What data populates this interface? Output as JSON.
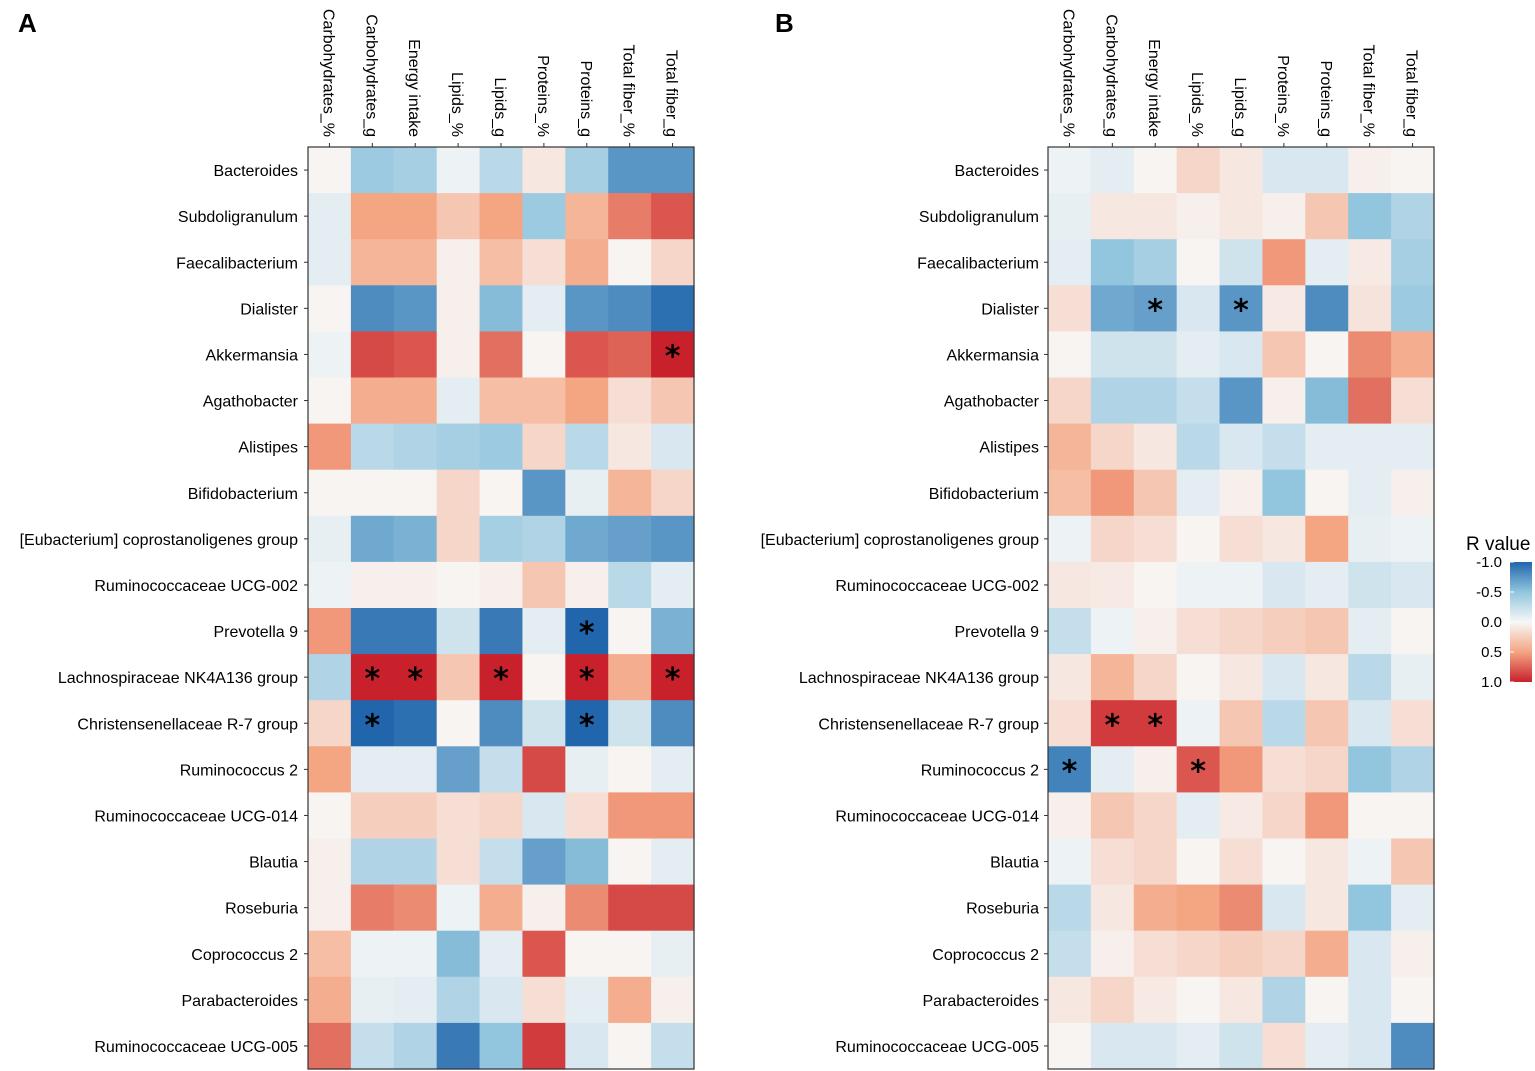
{
  "chart_data": [
    {
      "panel": "A",
      "type": "heatmap",
      "rows": [
        "Bacteroides",
        "Subdoligranulum",
        "Faecalibacterium",
        "Dialister",
        "Akkermansia",
        "Agathobacter",
        "Alistipes",
        "Bifidobacterium",
        "[Eubacterium] coprostanoligenes group",
        "Ruminococcaceae UCG-002",
        "Prevotella 9",
        "Lachnospiraceae NK4A136 group",
        "Christensenellaceae R-7 group",
        "Ruminococcus 2",
        "Ruminococcaceae UCG-014",
        "Blautia",
        "Roseburia",
        "Coprococcus 2",
        "Parabacteroides",
        "Ruminococcaceae UCG-005"
      ],
      "columns": [
        "Carbohydrates_%",
        "Carbohydrates_g",
        "Energy intake",
        "Lipids_%",
        "Lipids_g",
        "Proteins_%",
        "Proteins_g",
        "Total fiber_%",
        "Total fiber_g"
      ],
      "values": [
        [
          0.02,
          -0.45,
          -0.4,
          -0.05,
          -0.3,
          0.1,
          -0.4,
          -0.75,
          -0.75
        ],
        [
          -0.1,
          0.5,
          0.5,
          0.3,
          0.5,
          -0.45,
          0.4,
          0.65,
          0.8
        ],
        [
          -0.1,
          0.4,
          0.4,
          0.05,
          0.35,
          0.15,
          0.45,
          0.02,
          0.2
        ],
        [
          0.02,
          -0.8,
          -0.75,
          0.05,
          -0.55,
          -0.1,
          -0.75,
          -0.8,
          -0.95
        ],
        [
          -0.05,
          0.85,
          0.8,
          0.05,
          0.7,
          0.02,
          0.8,
          0.75,
          1.0
        ],
        [
          0.02,
          0.45,
          0.45,
          -0.1,
          0.35,
          0.35,
          0.5,
          0.15,
          0.3
        ],
        [
          0.55,
          -0.3,
          -0.35,
          -0.4,
          -0.45,
          0.2,
          -0.3,
          0.1,
          -0.15
        ],
        [
          0.02,
          0.02,
          0.02,
          0.2,
          0.02,
          -0.75,
          -0.08,
          0.4,
          0.2
        ],
        [
          -0.08,
          -0.65,
          -0.6,
          0.2,
          -0.4,
          -0.35,
          -0.65,
          -0.7,
          -0.75
        ],
        [
          -0.05,
          0.05,
          0.05,
          0.02,
          0.05,
          0.3,
          0.05,
          -0.3,
          -0.1
        ],
        [
          0.55,
          -0.9,
          -0.9,
          -0.2,
          -0.9,
          -0.1,
          -1.0,
          0.02,
          -0.6
        ],
        [
          -0.35,
          1.0,
          1.0,
          0.3,
          1.0,
          0.02,
          1.0,
          0.45,
          1.0
        ],
        [
          0.2,
          -1.0,
          -0.95,
          0.02,
          -0.8,
          -0.2,
          -1.0,
          -0.2,
          -0.8
        ],
        [
          0.5,
          -0.1,
          -0.1,
          -0.7,
          -0.25,
          0.85,
          -0.08,
          0.02,
          -0.1
        ],
        [
          0.02,
          0.25,
          0.25,
          0.15,
          0.2,
          -0.15,
          0.15,
          0.55,
          0.55
        ],
        [
          0.05,
          -0.35,
          -0.35,
          0.15,
          -0.25,
          -0.7,
          -0.55,
          0.02,
          -0.1
        ],
        [
          0.05,
          0.65,
          0.6,
          -0.05,
          0.45,
          0.05,
          0.6,
          0.85,
          0.85
        ],
        [
          0.35,
          -0.05,
          -0.05,
          -0.55,
          -0.1,
          0.8,
          0.02,
          0.02,
          -0.08
        ],
        [
          0.45,
          -0.08,
          -0.1,
          -0.35,
          -0.15,
          0.15,
          -0.1,
          0.45,
          0.05
        ],
        [
          0.7,
          -0.25,
          -0.35,
          -0.9,
          -0.5,
          0.9,
          -0.15,
          0.02,
          -0.25
        ]
      ],
      "significant": [
        [
          4,
          8
        ],
        [
          10,
          6
        ],
        [
          11,
          1
        ],
        [
          11,
          2
        ],
        [
          11,
          4
        ],
        [
          11,
          6
        ],
        [
          11,
          8
        ],
        [
          12,
          1
        ],
        [
          12,
          6
        ]
      ],
      "marker": "*"
    },
    {
      "panel": "B",
      "type": "heatmap",
      "rows": [
        "Bacteroides",
        "Subdoligranulum",
        "Faecalibacterium",
        "Dialister",
        "Akkermansia",
        "Agathobacter",
        "Alistipes",
        "Bifidobacterium",
        "[Eubacterium] coprostanoligenes group",
        "Ruminococcaceae UCG-002",
        "Prevotella 9",
        "Lachnospiraceae NK4A136 group",
        "Christensenellaceae R-7 group",
        "Ruminococcus 2",
        "Ruminococcaceae UCG-014",
        "Blautia",
        "Roseburia",
        "Coprococcus 2",
        "Parabacteroides",
        "Ruminococcaceae UCG-005"
      ],
      "columns": [
        "Carbohydrates_%",
        "Carbohydrates_g",
        "Energy intake",
        "Lipids_%",
        "Lipids_g",
        "Proteins_%",
        "Proteins_g",
        "Total fiber_%",
        "Total fiber_g"
      ],
      "values": [
        [
          -0.05,
          -0.1,
          0.02,
          0.2,
          0.1,
          -0.15,
          -0.15,
          0.05,
          0.02
        ],
        [
          -0.08,
          0.1,
          0.1,
          0.05,
          0.1,
          0.05,
          0.3,
          -0.5,
          -0.35
        ],
        [
          -0.1,
          -0.5,
          -0.4,
          0.02,
          -0.2,
          0.55,
          -0.1,
          0.08,
          -0.4
        ],
        [
          0.15,
          -0.65,
          -0.7,
          -0.15,
          -0.75,
          0.08,
          -0.8,
          0.12,
          -0.45
        ],
        [
          0.02,
          -0.2,
          -0.2,
          -0.1,
          -0.15,
          0.3,
          0.02,
          0.6,
          0.45
        ],
        [
          0.2,
          -0.35,
          -0.35,
          -0.25,
          -0.75,
          0.05,
          -0.55,
          0.7,
          0.15
        ],
        [
          0.4,
          0.2,
          0.1,
          -0.3,
          -0.15,
          -0.25,
          -0.1,
          -0.1,
          -0.1
        ],
        [
          0.35,
          0.55,
          0.3,
          -0.1,
          0.05,
          -0.5,
          0.02,
          -0.1,
          0.05
        ],
        [
          -0.05,
          0.2,
          0.15,
          0.02,
          0.15,
          0.1,
          0.5,
          -0.08,
          -0.05
        ],
        [
          0.1,
          0.08,
          0.02,
          -0.05,
          -0.05,
          -0.15,
          -0.1,
          -0.2,
          -0.15
        ],
        [
          -0.25,
          -0.05,
          0.05,
          0.15,
          0.2,
          0.25,
          0.3,
          -0.1,
          0.02
        ],
        [
          0.1,
          0.4,
          0.2,
          0.02,
          0.1,
          -0.15,
          0.1,
          -0.3,
          -0.08
        ],
        [
          0.15,
          0.9,
          0.9,
          -0.05,
          0.3,
          -0.3,
          0.3,
          -0.15,
          0.15
        ],
        [
          -0.85,
          -0.1,
          0.05,
          0.8,
          0.55,
          0.15,
          0.2,
          -0.5,
          -0.35
        ],
        [
          0.05,
          0.3,
          0.2,
          -0.1,
          0.08,
          0.2,
          0.55,
          0.02,
          0.02
        ],
        [
          -0.05,
          0.15,
          0.2,
          0.02,
          0.15,
          0.02,
          0.1,
          -0.05,
          0.3
        ],
        [
          -0.3,
          0.1,
          0.45,
          0.5,
          0.6,
          -0.15,
          0.1,
          -0.5,
          -0.1
        ],
        [
          -0.25,
          0.05,
          0.15,
          0.2,
          0.25,
          0.2,
          0.45,
          -0.15,
          0.05
        ],
        [
          0.1,
          0.2,
          0.08,
          0.02,
          0.1,
          -0.35,
          0.02,
          -0.15,
          0.02
        ],
        [
          0.02,
          -0.15,
          -0.15,
          -0.1,
          -0.2,
          0.15,
          -0.1,
          -0.15,
          -0.8
        ]
      ],
      "significant": [
        [
          3,
          2
        ],
        [
          3,
          4
        ],
        [
          12,
          1
        ],
        [
          12,
          2
        ],
        [
          13,
          0
        ],
        [
          13,
          3
        ]
      ],
      "marker": "*"
    }
  ],
  "legend": {
    "title": "R value",
    "ticks": [
      "-1.0",
      "-0.5",
      "0.0",
      "0.5",
      "1.0"
    ],
    "tick_values": [
      -1.0,
      -0.5,
      0.0,
      0.5,
      1.0
    ]
  },
  "colors": {
    "negative": "#2166ac",
    "mid": "#f7f7f7",
    "positive": "#c8212c",
    "frame": "#333333"
  }
}
